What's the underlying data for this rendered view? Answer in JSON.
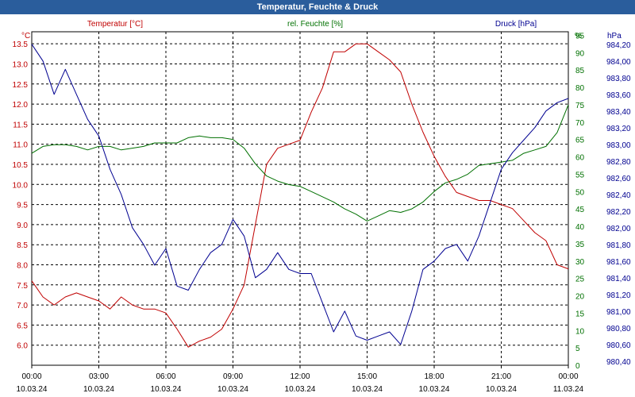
{
  "title": "Temperatur, Feuchte & Druck",
  "colors": {
    "temperature": "#c00000",
    "humidity": "#007000",
    "pressure": "#000090",
    "titlebar": "#2a5d9c"
  },
  "chart_data": {
    "type": "line",
    "title": "Temperatur, Feuchte & Druck",
    "grid": true,
    "x_ticks": [
      {
        "time": "00:00",
        "date": "10.03.24"
      },
      {
        "time": "03:00",
        "date": "10.03.24"
      },
      {
        "time": "06:00",
        "date": "10.03.24"
      },
      {
        "time": "09:00",
        "date": "10.03.24"
      },
      {
        "time": "12:00",
        "date": "10.03.24"
      },
      {
        "time": "15:00",
        "date": "10.03.24"
      },
      {
        "time": "18:00",
        "date": "10.03.24"
      },
      {
        "time": "21:00",
        "date": "10.03.24"
      },
      {
        "time": "00:00",
        "date": "11.03.24"
      }
    ],
    "xlim": [
      "10.03.24 00:00",
      "11.03.24 00:00"
    ],
    "axes": {
      "temperature": {
        "unit": "°C",
        "ylim": [
          5.5,
          13.8
        ],
        "ticks": [
          "6.0",
          "6.5",
          "7.0",
          "7.5",
          "8.0",
          "8.5",
          "9.0",
          "9.5",
          "10.0",
          "10.5",
          "11.0",
          "11.5",
          "12.0",
          "12.5",
          "13.0",
          "13.5"
        ]
      },
      "humidity": {
        "unit": "%",
        "ylim": [
          0,
          96
        ],
        "ticks": [
          "0",
          "5",
          "10",
          "15",
          "20",
          "25",
          "30",
          "35",
          "40",
          "45",
          "50",
          "55",
          "60",
          "65",
          "70",
          "75",
          "80",
          "85",
          "90",
          "95"
        ]
      },
      "pressure": {
        "unit": "hPa",
        "ylim": [
          980.35,
          984.35
        ],
        "ticks": [
          "980,40",
          "980,60",
          "980,80",
          "981,00",
          "981,20",
          "981,40",
          "981,60",
          "981,80",
          "982,00",
          "982,20",
          "982,40",
          "982,60",
          "982,80",
          "983,00",
          "983,20",
          "983,40",
          "983,60",
          "983,80",
          "984,00",
          "984,20"
        ]
      }
    },
    "series": [
      {
        "name": "Temperatur [°C]",
        "axis": "temperature",
        "x": [
          "10.03.24 00:00",
          "10.03.24 00:30",
          "10.03.24 01:00",
          "10.03.24 01:30",
          "10.03.24 02:00",
          "10.03.24 02:30",
          "10.03.24 03:00",
          "10.03.24 03:30",
          "10.03.24 04:00",
          "10.03.24 04:30",
          "10.03.24 05:00",
          "10.03.24 05:30",
          "10.03.24 06:00",
          "10.03.24 06:30",
          "10.03.24 07:00",
          "10.03.24 07:30",
          "10.03.24 08:00",
          "10.03.24 08:30",
          "10.03.24 09:00",
          "10.03.24 09:30",
          "10.03.24 10:00",
          "10.03.24 10:30",
          "10.03.24 11:00",
          "10.03.24 11:30",
          "10.03.24 12:00",
          "10.03.24 12:30",
          "10.03.24 13:00",
          "10.03.24 13:30",
          "10.03.24 14:00",
          "10.03.24 14:30",
          "10.03.24 15:00",
          "10.03.24 15:30",
          "10.03.24 16:00",
          "10.03.24 16:30",
          "10.03.24 17:00",
          "10.03.24 17:30",
          "10.03.24 18:00",
          "10.03.24 18:30",
          "10.03.24 19:00",
          "10.03.24 19:30",
          "10.03.24 20:00",
          "10.03.24 20:30",
          "10.03.24 21:00",
          "10.03.24 21:30",
          "10.03.24 22:00",
          "10.03.24 22:30",
          "10.03.24 23:00",
          "10.03.24 23:30",
          "11.03.24 00:00"
        ],
        "values": [
          7.6,
          7.2,
          7.0,
          7.2,
          7.3,
          7.2,
          7.1,
          6.9,
          7.2,
          7.0,
          6.9,
          6.9,
          6.8,
          6.4,
          5.95,
          6.1,
          6.2,
          6.4,
          6.9,
          7.5,
          9.0,
          10.5,
          10.9,
          11.0,
          11.1,
          11.8,
          12.4,
          13.3,
          13.3,
          13.5,
          13.5,
          13.3,
          13.1,
          12.8,
          12.0,
          11.3,
          10.7,
          10.2,
          9.8,
          9.7,
          9.6,
          9.6,
          9.5,
          9.4,
          9.1,
          8.8,
          8.6,
          8.0,
          7.9
        ]
      },
      {
        "name": "rel. Feuchte [%]",
        "axis": "humidity",
        "x": [
          "10.03.24 00:00",
          "10.03.24 00:30",
          "10.03.24 01:00",
          "10.03.24 01:30",
          "10.03.24 02:00",
          "10.03.24 02:30",
          "10.03.24 03:00",
          "10.03.24 03:30",
          "10.03.24 04:00",
          "10.03.24 04:30",
          "10.03.24 05:00",
          "10.03.24 05:30",
          "10.03.24 06:00",
          "10.03.24 06:30",
          "10.03.24 07:00",
          "10.03.24 07:30",
          "10.03.24 08:00",
          "10.03.24 08:30",
          "10.03.24 09:00",
          "10.03.24 09:30",
          "10.03.24 10:00",
          "10.03.24 10:30",
          "10.03.24 11:00",
          "10.03.24 11:30",
          "10.03.24 12:00",
          "10.03.24 12:30",
          "10.03.24 13:00",
          "10.03.24 13:30",
          "10.03.24 14:00",
          "10.03.24 14:30",
          "10.03.24 15:00",
          "10.03.24 15:30",
          "10.03.24 16:00",
          "10.03.24 16:30",
          "10.03.24 17:00",
          "10.03.24 17:30",
          "10.03.24 18:00",
          "10.03.24 18:30",
          "10.03.24 19:00",
          "10.03.24 19:30",
          "10.03.24 20:00",
          "10.03.24 20:30",
          "10.03.24 21:00",
          "10.03.24 21:30",
          "10.03.24 22:00",
          "10.03.24 22:30",
          "10.03.24 23:00",
          "10.03.24 23:30",
          "11.03.24 00:00"
        ],
        "values": [
          61,
          63,
          63.5,
          63.5,
          63,
          62,
          63,
          63,
          62,
          62.5,
          63,
          64,
          64,
          64,
          65.5,
          66,
          65.5,
          65.5,
          65,
          62.5,
          58,
          54.5,
          53,
          52,
          51.5,
          50,
          48.5,
          47,
          45,
          43.5,
          41.5,
          43,
          44.5,
          44,
          45,
          47,
          50,
          52.5,
          53.5,
          55,
          57.5,
          58,
          58.5,
          59,
          61,
          62,
          63,
          67,
          75
        ]
      },
      {
        "name": "Druck [hPa]",
        "axis": "pressure",
        "x": [
          "10.03.24 00:00",
          "10.03.24 00:30",
          "10.03.24 01:00",
          "10.03.24 01:30",
          "10.03.24 02:00",
          "10.03.24 02:30",
          "10.03.24 03:00",
          "10.03.24 03:30",
          "10.03.24 04:00",
          "10.03.24 04:30",
          "10.03.24 05:00",
          "10.03.24 05:30",
          "10.03.24 06:00",
          "10.03.24 06:30",
          "10.03.24 07:00",
          "10.03.24 07:30",
          "10.03.24 08:00",
          "10.03.24 08:30",
          "10.03.24 09:00",
          "10.03.24 09:30",
          "10.03.24 10:00",
          "10.03.24 10:30",
          "10.03.24 11:00",
          "10.03.24 11:30",
          "10.03.24 12:00",
          "10.03.24 12:30",
          "10.03.24 13:00",
          "10.03.24 13:30",
          "10.03.24 14:00",
          "10.03.24 14:30",
          "10.03.24 15:00",
          "10.03.24 15:30",
          "10.03.24 16:00",
          "10.03.24 16:30",
          "10.03.24 17:00",
          "10.03.24 17:30",
          "10.03.24 18:00",
          "10.03.24 18:30",
          "10.03.24 19:00",
          "10.03.24 19:30",
          "10.03.24 20:00",
          "10.03.24 20:30",
          "10.03.24 21:00",
          "10.03.24 21:30",
          "10.03.24 22:00",
          "10.03.24 22:30",
          "10.03.24 23:00",
          "10.03.24 23:30",
          "11.03.24 00:00"
        ],
        "values": [
          984.2,
          984.0,
          983.6,
          983.9,
          983.6,
          983.3,
          983.1,
          982.7,
          982.4,
          982.0,
          981.8,
          981.55,
          981.75,
          981.3,
          981.25,
          981.5,
          981.7,
          981.8,
          982.1,
          981.9,
          981.4,
          981.5,
          981.7,
          981.5,
          981.45,
          981.45,
          981.1,
          980.75,
          981.0,
          980.7,
          980.65,
          980.7,
          980.75,
          980.6,
          981.0,
          981.5,
          981.6,
          981.75,
          981.8,
          981.6,
          981.9,
          982.3,
          982.7,
          982.9,
          983.05,
          983.2,
          983.4,
          983.5,
          983.55
        ]
      }
    ]
  }
}
